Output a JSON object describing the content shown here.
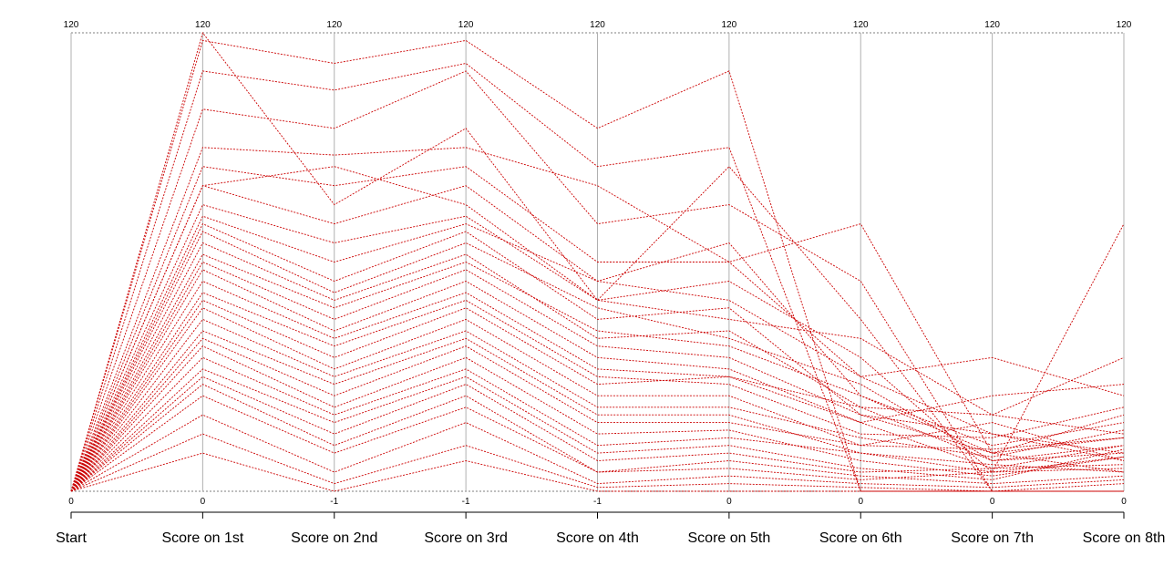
{
  "chart_data": {
    "type": "parallel-coordinates",
    "axes": [
      "Start",
      "Score on 1st",
      "Score on 2nd",
      "Score on 3rd",
      "Score on 4th",
      "Score on 5th",
      "Score on 6th",
      "Score on 7th",
      "Score on 8th"
    ],
    "axis_max_labels": [
      "120",
      "120",
      "120",
      "120",
      "120",
      "120",
      "120",
      "120",
      "120"
    ],
    "axis_min_labels": [
      "0",
      "0",
      "-1",
      "-1",
      "-1",
      "0",
      "0",
      "0",
      "0"
    ],
    "ylim": [
      0,
      120
    ],
    "line_color": "#cc0000",
    "line_style": "dashed",
    "axis_line_color": "#b0b0b0",
    "grid": false,
    "legend": "none",
    "series": [
      {
        "values": [
          0,
          120,
          75,
          95,
          50,
          85,
          45,
          0,
          0
        ]
      },
      {
        "values": [
          0,
          118,
          112,
          118,
          95,
          110,
          0,
          0,
          0
        ]
      },
      {
        "values": [
          0,
          110,
          105,
          112,
          85,
          90,
          0,
          0,
          0
        ]
      },
      {
        "values": [
          0,
          100,
          95,
          110,
          70,
          75,
          55,
          0,
          0
        ]
      },
      {
        "values": [
          0,
          90,
          88,
          90,
          80,
          60,
          70,
          10,
          5
        ]
      },
      {
        "values": [
          0,
          85,
          80,
          85,
          60,
          60,
          30,
          15,
          8
        ]
      },
      {
        "values": [
          0,
          80,
          70,
          80,
          55,
          65,
          25,
          10,
          20
        ]
      },
      {
        "values": [
          0,
          80,
          85,
          75,
          50,
          45,
          40,
          20,
          15
        ]
      },
      {
        "values": [
          0,
          75,
          65,
          72,
          50,
          55,
          35,
          5,
          70
        ]
      },
      {
        "values": [
          0,
          72,
          60,
          70,
          55,
          50,
          30,
          35,
          25
        ]
      },
      {
        "values": [
          0,
          70,
          55,
          68,
          45,
          48,
          20,
          15,
          10
        ]
      },
      {
        "values": [
          0,
          68,
          52,
          65,
          48,
          40,
          28,
          8,
          12
        ]
      },
      {
        "values": [
          0,
          65,
          50,
          62,
          40,
          42,
          22,
          20,
          35
        ]
      },
      {
        "values": [
          0,
          62,
          48,
          60,
          42,
          38,
          25,
          12,
          18
        ]
      },
      {
        "values": [
          0,
          60,
          45,
          58,
          38,
          35,
          20,
          10,
          14
        ]
      },
      {
        "values": [
          0,
          58,
          42,
          55,
          35,
          32,
          18,
          25,
          28
        ]
      },
      {
        "values": [
          0,
          55,
          40,
          52,
          32,
          30,
          22,
          8,
          10
        ]
      },
      {
        "values": [
          0,
          52,
          38,
          50,
          30,
          28,
          15,
          14,
          22
        ]
      },
      {
        "values": [
          0,
          50,
          35,
          48,
          28,
          30,
          18,
          6,
          12
        ]
      },
      {
        "values": [
          0,
          48,
          32,
          45,
          25,
          25,
          12,
          18,
          8
        ]
      },
      {
        "values": [
          0,
          45,
          30,
          42,
          22,
          22,
          14,
          9,
          16
        ]
      },
      {
        "values": [
          0,
          42,
          28,
          40,
          20,
          20,
          10,
          5,
          6
        ]
      },
      {
        "values": [
          0,
          40,
          25,
          38,
          18,
          18,
          12,
          11,
          14
        ]
      },
      {
        "values": [
          0,
          38,
          22,
          35,
          15,
          16,
          8,
          4,
          9
        ]
      },
      {
        "values": [
          0,
          35,
          20,
          32,
          12,
          14,
          10,
          7,
          5
        ]
      },
      {
        "values": [
          0,
          32,
          18,
          30,
          10,
          12,
          6,
          3,
          11
        ]
      },
      {
        "values": [
          0,
          30,
          15,
          28,
          8,
          10,
          5,
          6,
          7
        ]
      },
      {
        "values": [
          0,
          28,
          12,
          25,
          5,
          8,
          4,
          2,
          4
        ]
      },
      {
        "values": [
          0,
          25,
          10,
          22,
          5,
          6,
          3,
          5,
          9
        ]
      },
      {
        "values": [
          0,
          20,
          5,
          18,
          2,
          4,
          2,
          1,
          3
        ]
      },
      {
        "values": [
          0,
          15,
          2,
          12,
          1,
          2,
          1,
          0,
          2
        ]
      },
      {
        "values": [
          0,
          10,
          0,
          8,
          0,
          0,
          0,
          0,
          0
        ]
      }
    ]
  }
}
